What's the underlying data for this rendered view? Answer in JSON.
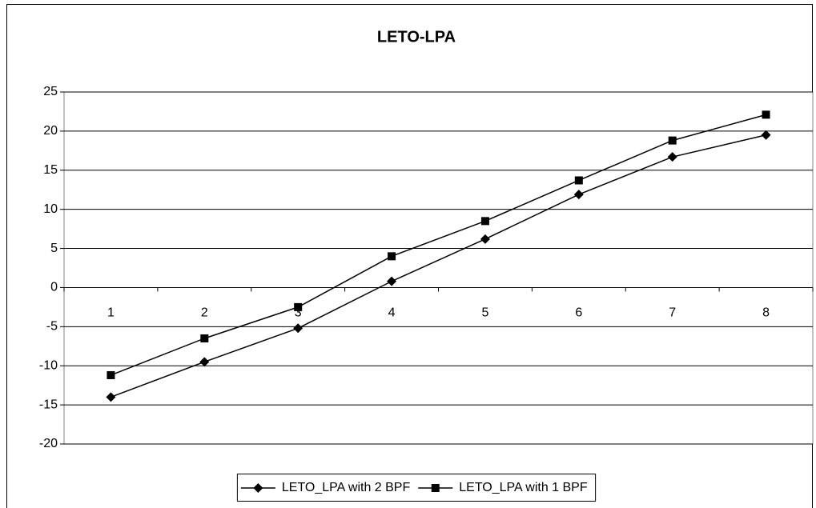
{
  "chart_data": {
    "type": "line",
    "title": "LETO-LPA",
    "categories": [
      "1",
      "2",
      "3",
      "4",
      "5",
      "6",
      "7",
      "8"
    ],
    "series": [
      {
        "name": "LETO_LPA with 2 BPF",
        "color": "#000000",
        "marker": "diamond",
        "values": [
          -14,
          -9.5,
          -5.2,
          0.8,
          6.2,
          11.9,
          16.7,
          19.5
        ]
      },
      {
        "name": "LETO_LPA with 1 BPF",
        "color": "#000000",
        "marker": "square",
        "values": [
          -11.2,
          -6.5,
          -2.5,
          4,
          8.5,
          13.7,
          18.8,
          22.1
        ]
      }
    ],
    "ylim": [
      -20,
      25
    ],
    "yticks": [
      -20,
      -15,
      -10,
      -5,
      0,
      5,
      10,
      15,
      20,
      25
    ],
    "grid": true,
    "legend": "bottom"
  }
}
